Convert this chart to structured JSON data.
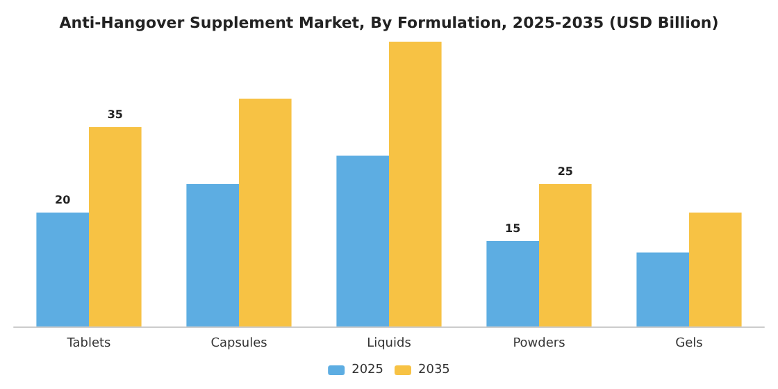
{
  "chart_data": {
    "type": "bar",
    "title": "Anti-Hangover Supplement Market, By Formulation, 2025-2035 (USD Billion)",
    "categories": [
      "Tablets",
      "Capsules",
      "Liquids",
      "Powders",
      "Gels"
    ],
    "series": [
      {
        "name": "2025",
        "color": "#5dade2",
        "values": [
          20,
          25,
          30,
          15,
          13
        ],
        "value_labels": [
          "20",
          null,
          null,
          "15",
          null
        ]
      },
      {
        "name": "2035",
        "color": "#f7c244",
        "values": [
          35,
          40,
          50,
          25,
          20
        ],
        "value_labels": [
          "35",
          null,
          null,
          "25",
          null
        ]
      }
    ],
    "legend": "bottom"
  }
}
